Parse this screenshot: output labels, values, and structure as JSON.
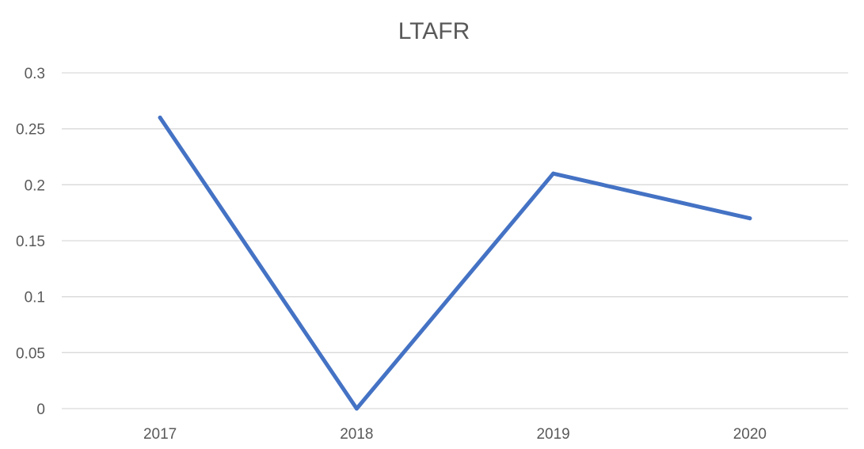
{
  "chart_data": {
    "type": "line",
    "title": "LTAFR",
    "categories": [
      "2017",
      "2018",
      "2019",
      "2020"
    ],
    "series": [
      {
        "values": [
          0.26,
          0,
          0.21,
          0.17
        ],
        "color": "#4472c4"
      }
    ],
    "y_ticks": [
      "0",
      "0.05",
      "0.1",
      "0.15",
      "0.2",
      "0.25",
      "0.3"
    ],
    "ylim": [
      0,
      0.3
    ],
    "grid": true,
    "legend": "none"
  }
}
